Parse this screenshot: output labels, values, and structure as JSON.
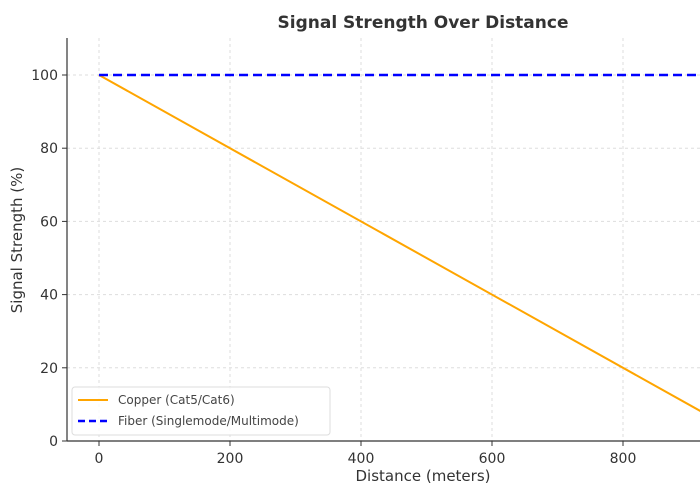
{
  "chart_data": {
    "type": "line",
    "title": "Signal Strength Over Distance",
    "xlabel": "Distance (meters)",
    "ylabel": "Signal Strength (%)",
    "xlim": [
      -50,
      1050
    ],
    "ylim": [
      0,
      110
    ],
    "xticks": [
      0,
      200,
      400,
      600,
      800
    ],
    "yticks": [
      0,
      20,
      40,
      60,
      80,
      100
    ],
    "grid": true,
    "legend_position": "bottom-left",
    "series": [
      {
        "name": "Copper (Cat5/Cat6)",
        "x": [
          0,
          1000
        ],
        "y": [
          100,
          0
        ],
        "color": "#FFA500",
        "style": "solid"
      },
      {
        "name": "Fiber (Singlemode/Multimode)",
        "x": [
          0,
          1000
        ],
        "y": [
          100,
          100
        ],
        "color": "#0000FF",
        "style": "dashed"
      }
    ]
  }
}
